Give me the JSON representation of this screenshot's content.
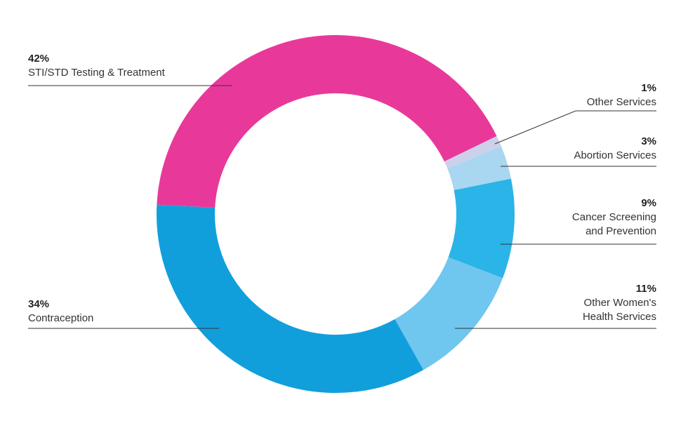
{
  "chart_data": {
    "type": "donut",
    "categories": [
      "STI/STD Testing & Treatment",
      "Other Services",
      "Abortion Services",
      "Cancer Screening and Prevention",
      "Other Women's Health Services",
      "Contraception"
    ],
    "values": [
      42,
      1,
      3,
      9,
      11,
      34
    ],
    "value_labels": [
      "42%",
      "1%",
      "3%",
      "9%",
      "11%",
      "34%"
    ],
    "colors": [
      "#e8399a",
      "#cdd0ea",
      "#a9d6f0",
      "#2ab4e7",
      "#6fc6ef",
      "#119fdc"
    ]
  }
}
